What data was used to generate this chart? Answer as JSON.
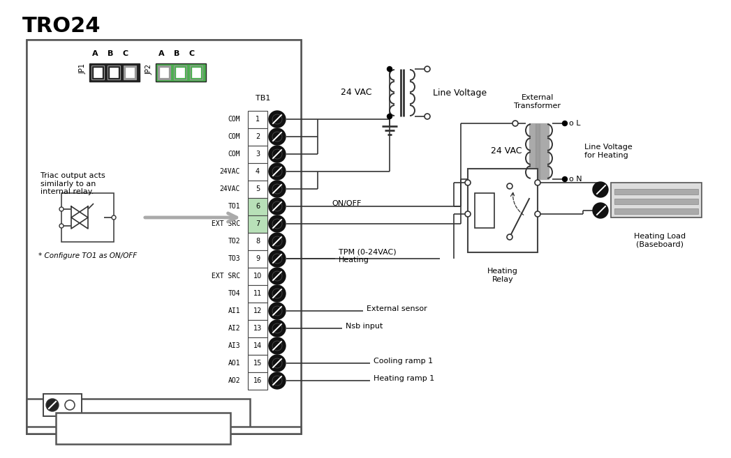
{
  "title": "TRO24",
  "bg_color": "#ffffff",
  "tb1_labels": [
    "COM",
    "COM",
    "COM",
    "24VAC",
    "24VAC",
    "TO1",
    "EXT SRC",
    "TO2",
    "TO3",
    "EXT SRC",
    "TO4",
    "AI1",
    "AI2",
    "AI3",
    "AO1",
    "AO2"
  ],
  "tb1_numbers": [
    "1",
    "2",
    "3",
    "4",
    "5",
    "6",
    "7",
    "8",
    "9",
    "10",
    "11",
    "12",
    "13",
    "14",
    "15",
    "16"
  ],
  "green_color": "#4CAF50",
  "light_green": "#b8e0b8",
  "triac_text": "Triac output acts\nsimilarly to an\ninternal relay.",
  "configure_text": "* Configure TO1 as ON/OFF",
  "transformer1_label": "24 VAC",
  "transformer1_right_label": "Line Voltage",
  "transformer2_label": "24 VAC",
  "ext_transformer_label": "External\nTransformer",
  "heating_relay_label": "Heating\nRelay",
  "heating_load_label": "Heating Load\n(Baseboard)",
  "line_voltage_heating": "Line Voltage\nfor Heating",
  "ann_6": "ON/OFF",
  "ann_9": "TPM (0-24VAC)\nHeating",
  "ann_12": "External sensor",
  "ann_13": "Nsb input",
  "ann_15": "Cooling ramp 1",
  "ann_16": "Heating ramp 1"
}
